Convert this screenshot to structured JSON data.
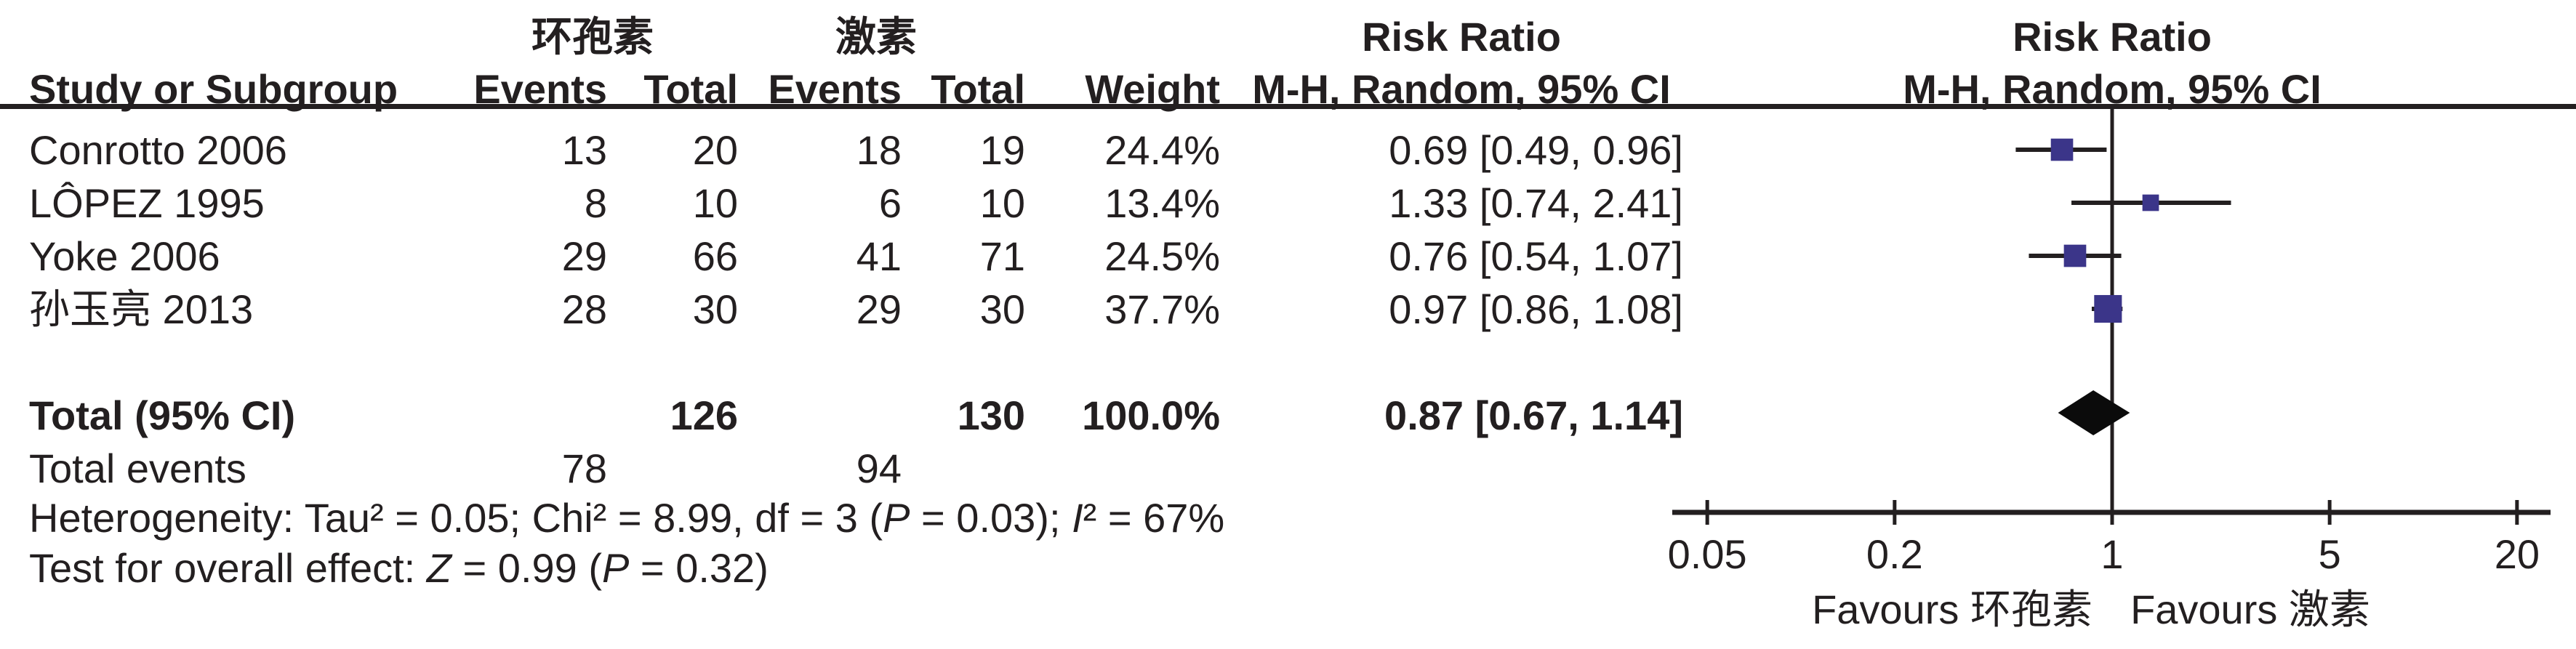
{
  "figure": {
    "group1_header": "环孢素",
    "group2_header": "激素",
    "effect_header": "Risk Ratio",
    "method_header": "M-H, Random, 95% CI",
    "columns": {
      "study": "Study or Subgroup",
      "events": "Events",
      "total": "Total",
      "weight": "Weight"
    },
    "rows": [
      {
        "study": "Conrotto 2006",
        "e1": "13",
        "t1": "20",
        "e2": "18",
        "t2": "19",
        "weight": "24.4%",
        "ci": "0.69 [0.49, 0.96]"
      },
      {
        "study": "LÔPEZ 1995",
        "e1": "8",
        "t1": "10",
        "e2": "6",
        "t2": "10",
        "weight": "13.4%",
        "ci": "1.33 [0.74, 2.41]"
      },
      {
        "study": "Yoke 2006",
        "e1": "29",
        "t1": "66",
        "e2": "41",
        "t2": "71",
        "weight": "24.5%",
        "ci": "0.76 [0.54, 1.07]"
      },
      {
        "study": "孙玉亮 2013",
        "e1": "28",
        "t1": "30",
        "e2": "29",
        "t2": "30",
        "weight": "37.7%",
        "ci": "0.97 [0.86, 1.08]"
      }
    ],
    "total_row": {
      "label": "Total (95% CI)",
      "t1": "126",
      "t2": "130",
      "weight": "100.0%",
      "ci": "0.87 [0.67, 1.14]"
    },
    "total_events": {
      "label": "Total events",
      "e1": "78",
      "e2": "94"
    },
    "stats": {
      "heterogeneity": [
        {
          "t": "Heterogeneity: Tau² = 0.05; Chi² = 8.99, df = 3 ("
        },
        {
          "t": "P",
          "i": true
        },
        {
          "t": " = 0.03); "
        },
        {
          "t": "I",
          "i": true
        },
        {
          "t": "² = 67%"
        }
      ],
      "overall_effect": [
        {
          "t": "Test for overall effect: "
        },
        {
          "t": "Z",
          "i": true
        },
        {
          "t": " = 0.99 ("
        },
        {
          "t": "P",
          "i": true
        },
        {
          "t": " = 0.32)"
        }
      ]
    }
  },
  "chart_data": {
    "type": "forest",
    "effect_measure": "Risk Ratio",
    "method": "M-H, Random, 95% CI",
    "x_scale": "log",
    "axis_ticks": [
      "0.05",
      "0.2",
      "1",
      "5",
      "20"
    ],
    "axis_tick_values": [
      0.05,
      0.2,
      1,
      5,
      20
    ],
    "null_line": 1,
    "studies": [
      {
        "name": "Conrotto 2006",
        "rr": 0.69,
        "lo": 0.49,
        "hi": 0.96,
        "weight_pct": 24.4
      },
      {
        "name": "LÔPEZ 1995",
        "rr": 1.33,
        "lo": 0.74,
        "hi": 2.41,
        "weight_pct": 13.4
      },
      {
        "name": "Yoke 2006",
        "rr": 0.76,
        "lo": 0.54,
        "hi": 1.07,
        "weight_pct": 24.5
      },
      {
        "name": "孙玉亮 2013",
        "rr": 0.97,
        "lo": 0.86,
        "hi": 1.08,
        "weight_pct": 37.7
      }
    ],
    "total": {
      "rr": 0.87,
      "lo": 0.67,
      "hi": 1.14,
      "weight_pct": 100.0
    },
    "favours_left": "Favours 环孢素",
    "favours_right": "Favours 激素",
    "legend_position": "below-axis"
  },
  "colors": {
    "marker": "#3B3589",
    "line": "#231F20",
    "diamond": "#0B0B0B",
    "background": "#FFFFFF"
  }
}
